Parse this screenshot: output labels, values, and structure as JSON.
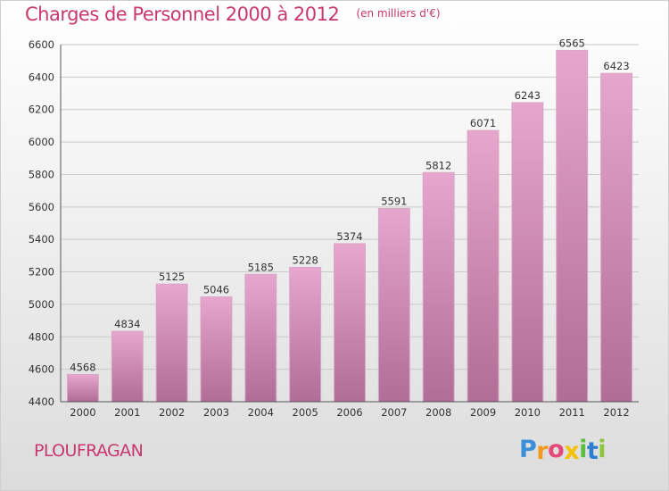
{
  "chart_data": {
    "type": "bar",
    "title": "Charges de Personnel 2000 à 2012",
    "subtitle": "(en milliers d'€)",
    "categories": [
      "2000",
      "2001",
      "2002",
      "2003",
      "2004",
      "2005",
      "2006",
      "2007",
      "2008",
      "2009",
      "2010",
      "2011",
      "2012"
    ],
    "values": [
      4568,
      4834,
      5125,
      5046,
      5185,
      5228,
      5374,
      5591,
      5812,
      6071,
      6243,
      6565,
      6423
    ],
    "ylim": [
      4400,
      6600
    ],
    "yticks": [
      4400,
      4600,
      4800,
      5000,
      5200,
      5400,
      5600,
      5800,
      6000,
      6200,
      6400,
      6600
    ],
    "xlabel": "",
    "ylabel": "",
    "grid": "horizontal",
    "legend": "none"
  },
  "place": "PLOUFRAGAN",
  "logo": {
    "text": "Proxiti",
    "letters": [
      {
        "ch": "P",
        "color": "#3a8fd8"
      },
      {
        "ch": "r",
        "color": "#f29a1f"
      },
      {
        "ch": "o",
        "color": "#e6487a"
      },
      {
        "ch": "x",
        "color": "#f5c000"
      },
      {
        "ch": "i",
        "color": "#5cbd3e"
      },
      {
        "ch": "t",
        "color": "#2f7fd0"
      },
      {
        "ch": "i",
        "color": "#8cc63f"
      }
    ]
  },
  "colors": {
    "accent": "#c8386e",
    "bar_top": "#e6a6cd",
    "bar_bottom": "#b06d96",
    "grid": "#c9c9c9",
    "axis": "#555555",
    "label": "#333333"
  }
}
